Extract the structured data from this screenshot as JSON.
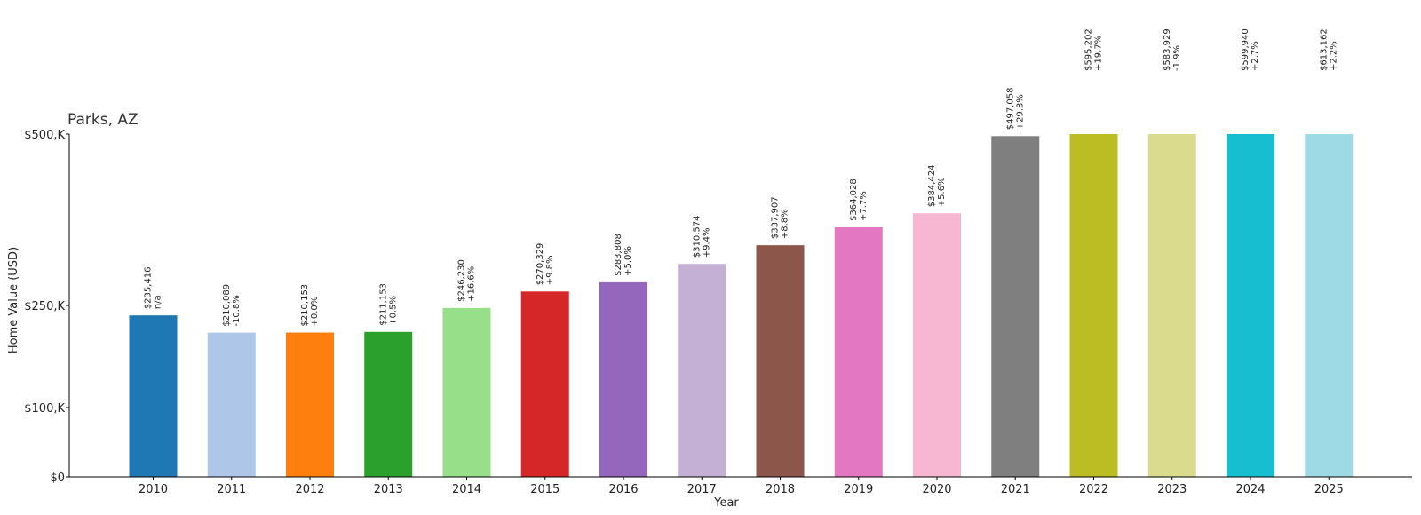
{
  "chart_data": {
    "type": "bar",
    "title": "Parks, AZ",
    "xlabel": "Year",
    "ylabel": "Home Value (USD)",
    "ylim": [
      0,
      500000
    ],
    "y_scale_note": "axis is non-linear; ticks placed at labeled values",
    "yticks": [
      {
        "value": 0,
        "label": "$0"
      },
      {
        "value": 100000,
        "label": "$100,K"
      },
      {
        "value": 250000,
        "label": "$250,K"
      },
      {
        "value": 500000,
        "label": "$500,K"
      }
    ],
    "categories": [
      "2010",
      "2011",
      "2012",
      "2013",
      "2014",
      "2015",
      "2016",
      "2017",
      "2018",
      "2019",
      "2020",
      "2021",
      "2022",
      "2023",
      "2024",
      "2025"
    ],
    "values": [
      235416,
      210089,
      210153,
      211153,
      246230,
      270329,
      283808,
      310574,
      337907,
      364028,
      384424,
      497058,
      595202,
      583929,
      599940,
      613162
    ],
    "value_labels": [
      "$235,416",
      "$210,089",
      "$210,153",
      "$211,153",
      "$246,230",
      "$270,329",
      "$283,808",
      "$310,574",
      "$337,907",
      "$364,028",
      "$384,424",
      "$497,058",
      "$595,202",
      "$583,929",
      "$599,940",
      "$613,162"
    ],
    "change_labels": [
      "n/a",
      "-10.8%",
      "+0.0%",
      "+0.5%",
      "+16.6%",
      "+9.8%",
      "+5.0%",
      "+9.4%",
      "+8.8%",
      "+7.7%",
      "+5.6%",
      "+29.3%",
      "+19.7%",
      "-1.9%",
      "+2.7%",
      "+2.2%"
    ],
    "colors": [
      "#1f77b4",
      "#aec7e8",
      "#ff7f0e",
      "#2ca02c",
      "#98df8a",
      "#d62728",
      "#9467bd",
      "#c5b0d5",
      "#8c564b",
      "#e377c2",
      "#f7b6d2",
      "#7f7f7f",
      "#bcbd22",
      "#dbdb8d",
      "#17becf",
      "#9edae5"
    ],
    "grid": false,
    "legend": "none"
  }
}
